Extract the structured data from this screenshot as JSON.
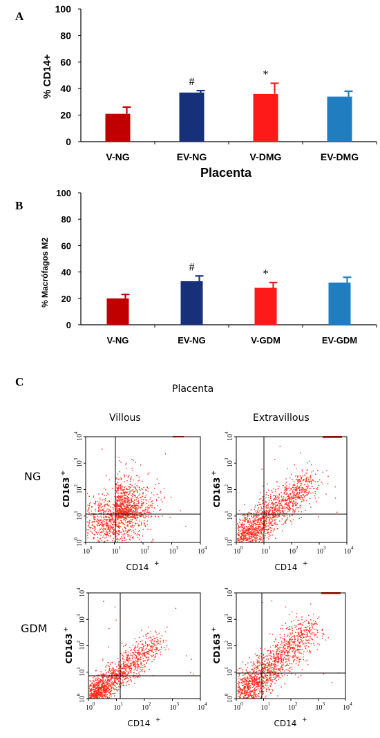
{
  "panels": {
    "a": "A",
    "b": "B",
    "c": "C"
  },
  "chart_data": [
    {
      "type": "bar",
      "ylabel": "% CD14+",
      "xlabel": "Placenta",
      "categories": [
        "V-NG",
        "EV-NG",
        "V-DMG",
        "EV-DMG"
      ],
      "values": [
        21,
        37,
        36,
        34
      ],
      "errors": [
        5,
        1.5,
        8,
        4
      ],
      "annotations": [
        "",
        "#",
        "*",
        ""
      ],
      "colors": [
        "#c00000",
        "#17307a",
        "#ff1a1a",
        "#1f7dc0"
      ],
      "ylim": [
        0,
        100
      ],
      "yticks": [
        0,
        20,
        40,
        60,
        80,
        100
      ]
    },
    {
      "type": "bar",
      "ylabel": "% Macrófagos M2",
      "xlabel": "",
      "categories": [
        "V-NG",
        "EV-NG",
        "V-GDM",
        "EV-GDM"
      ],
      "values": [
        20,
        33,
        28,
        32
      ],
      "errors": [
        3,
        4,
        4,
        4
      ],
      "annotations": [
        "",
        "#",
        "*",
        ""
      ],
      "colors": [
        "#c00000",
        "#17307a",
        "#ff1a1a",
        "#1f7dc0"
      ],
      "ylim": [
        0,
        100
      ],
      "yticks": [
        0,
        20,
        40,
        60,
        80,
        100
      ]
    }
  ],
  "flow": {
    "title": "Placenta",
    "col_labels": [
      "Villous",
      "Extravillous"
    ],
    "row_labels": [
      "NG",
      "GDM"
    ],
    "y_axis_label": "CD163",
    "x_axis_label": "CD14",
    "sup": "+",
    "decade_exps": [
      "0",
      "1",
      "2",
      "3",
      "4"
    ],
    "dot_color": "#ff2a1a"
  }
}
